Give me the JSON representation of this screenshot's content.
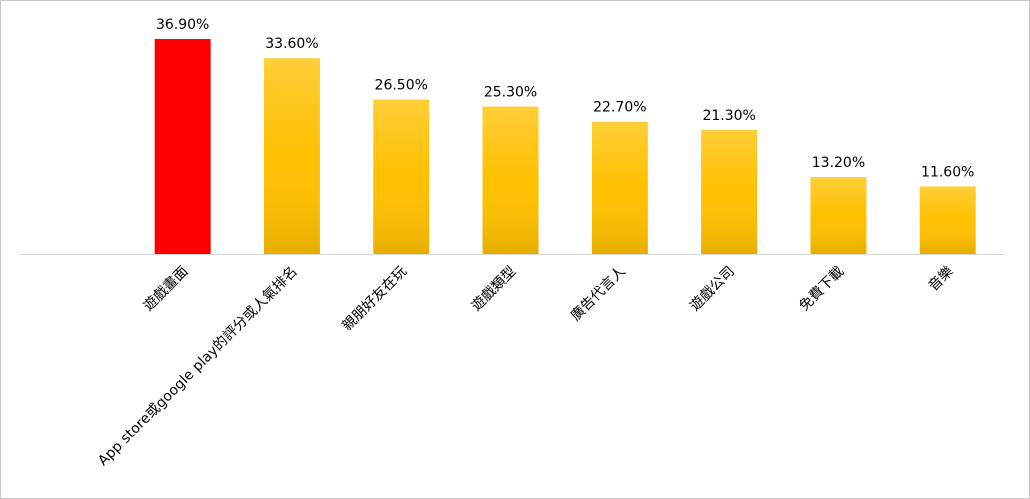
{
  "chart_data": {
    "type": "bar",
    "categories": [
      "遊戲畫面",
      "App store或google play的評分或人氣排名",
      "親朋好友在玩",
      "遊戲類型",
      "廣告代言人",
      "遊戲公司",
      "免費下載",
      "音樂"
    ],
    "values": [
      36.9,
      33.6,
      26.5,
      25.3,
      22.7,
      21.3,
      13.2,
      11.6
    ],
    "value_labels": [
      "36.90%",
      "33.60%",
      "26.50%",
      "25.30%",
      "22.70%",
      "21.30%",
      "13.20%",
      "11.60%"
    ],
    "colors": [
      "#ff0000",
      "#ffc000",
      "#ffc000",
      "#ffc000",
      "#ffc000",
      "#ffc000",
      "#ffc000",
      "#ffc000"
    ]
  }
}
